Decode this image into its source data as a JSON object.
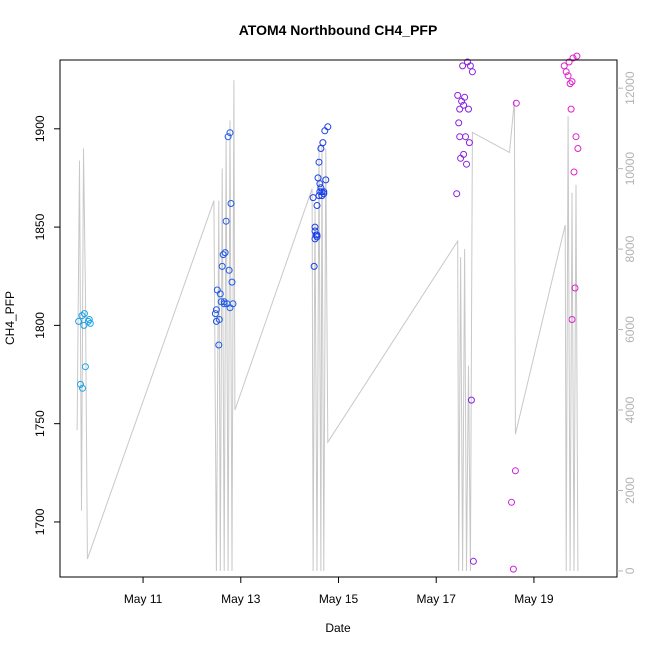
{
  "chart_data": {
    "type": "scatter",
    "title": "ATOM4 Northbound CH4_PFP",
    "xlabel": "Date",
    "ylabel": "CH4_PFP",
    "x_axis": {
      "unit": "day of May",
      "range": [
        9.3,
        20.7
      ],
      "ticks": [
        11,
        13,
        15,
        17,
        19
      ],
      "tick_labels": [
        "May 11",
        "May 13",
        "May 15",
        "May 17",
        "May 19"
      ]
    },
    "y_axis_left": {
      "range": [
        1672,
        1935
      ],
      "ticks": [
        1700,
        1750,
        1800,
        1850,
        1900
      ],
      "tick_labels": [
        "1700",
        "1750",
        "1800",
        "1850",
        "1900"
      ]
    },
    "y_axis_right": {
      "range": [
        -150,
        12700
      ],
      "ticks": [
        0,
        2000,
        4000,
        6000,
        8000,
        10000,
        12000
      ],
      "tick_labels": [
        "0",
        "2000",
        "4000",
        "6000",
        "8000",
        "10000",
        "12000"
      ],
      "color": "#b3b3b3"
    },
    "grid": false,
    "legend": "none",
    "colors": {
      "group_1": "#1ca3e6",
      "group_2": "#1f5ae6",
      "group_3": "#1a3fe6",
      "group_4": "#8a22e0",
      "group_5": "#cc22dd",
      "group_6": "#dd22cc",
      "altitude_line": "#c8c8c8"
    },
    "series": [
      {
        "color": "#1ca3e6",
        "points": [
          [
            9.68,
            1802
          ],
          [
            9.75,
            1805
          ],
          [
            9.8,
            1806
          ],
          [
            9.72,
            1770
          ],
          [
            9.76,
            1768
          ],
          [
            9.79,
            1800
          ],
          [
            9.82,
            1779
          ],
          [
            9.88,
            1802
          ],
          [
            9.9,
            1803
          ],
          [
            9.92,
            1801
          ]
        ]
      },
      {
        "color": "#1f5ae6",
        "points": [
          [
            12.48,
            1806
          ],
          [
            12.5,
            1802
          ],
          [
            12.52,
            1818
          ],
          [
            12.55,
            1790
          ],
          [
            12.58,
            1816
          ],
          [
            12.6,
            1812
          ],
          [
            12.62,
            1830
          ],
          [
            12.64,
            1836
          ],
          [
            12.66,
            1812
          ],
          [
            12.68,
            1837
          ],
          [
            12.7,
            1853
          ],
          [
            12.72,
            1811
          ],
          [
            12.74,
            1896
          ],
          [
            12.76,
            1828
          ],
          [
            12.78,
            1898
          ],
          [
            12.8,
            1862
          ],
          [
            12.82,
            1822
          ],
          [
            12.84,
            1811
          ],
          [
            12.5,
            1808
          ],
          [
            12.56,
            1803
          ],
          [
            12.66,
            1811
          ],
          [
            12.78,
            1809
          ]
        ]
      },
      {
        "color": "#1a3fe6",
        "points": [
          [
            14.48,
            1865
          ],
          [
            14.5,
            1830
          ],
          [
            14.52,
            1850
          ],
          [
            14.54,
            1846
          ],
          [
            14.56,
            1861
          ],
          [
            14.58,
            1875
          ],
          [
            14.6,
            1883
          ],
          [
            14.62,
            1872
          ],
          [
            14.64,
            1890
          ],
          [
            14.66,
            1868
          ],
          [
            14.68,
            1893
          ],
          [
            14.7,
            1867
          ],
          [
            14.72,
            1899
          ],
          [
            14.74,
            1874
          ],
          [
            14.78,
            1901
          ],
          [
            14.52,
            1844
          ],
          [
            14.56,
            1846
          ],
          [
            14.6,
            1866
          ],
          [
            14.64,
            1870
          ],
          [
            14.66,
            1866
          ],
          [
            14.7,
            1868
          ],
          [
            14.52,
            1848
          ],
          [
            14.56,
            1845
          ],
          [
            14.62,
            1868
          ]
        ]
      },
      {
        "color": "#8a22e0",
        "points": [
          [
            17.42,
            1867
          ],
          [
            17.44,
            1917
          ],
          [
            17.46,
            1903
          ],
          [
            17.48,
            1896
          ],
          [
            17.5,
            1885
          ],
          [
            17.52,
            1914
          ],
          [
            17.54,
            1932
          ],
          [
            17.56,
            1887
          ],
          [
            17.58,
            1916
          ],
          [
            17.6,
            1896
          ],
          [
            17.62,
            1882
          ],
          [
            17.64,
            1934
          ],
          [
            17.66,
            1910
          ],
          [
            17.68,
            1893
          ],
          [
            17.7,
            1932
          ],
          [
            17.72,
            1762
          ],
          [
            17.74,
            1929
          ],
          [
            17.76,
            1680
          ],
          [
            17.48,
            1910
          ],
          [
            17.56,
            1912
          ]
        ]
      },
      {
        "color": "#cc22dd",
        "points": [
          [
            18.54,
            1710
          ],
          [
            18.58,
            1676
          ],
          [
            18.62,
            1726
          ],
          [
            18.64,
            1913
          ]
        ]
      },
      {
        "color": "#dd22cc",
        "points": [
          [
            19.62,
            1932
          ],
          [
            19.66,
            1929
          ],
          [
            19.7,
            1927
          ],
          [
            19.72,
            1934
          ],
          [
            19.74,
            1923
          ],
          [
            19.76,
            1910
          ],
          [
            19.78,
            1924
          ],
          [
            19.8,
            1936
          ],
          [
            19.82,
            1878
          ],
          [
            19.84,
            1819
          ],
          [
            19.86,
            1896
          ],
          [
            19.88,
            1937
          ],
          [
            19.9,
            1890
          ],
          [
            19.78,
            1803
          ]
        ]
      }
    ],
    "altitude_line": {
      "color": "#c8c8c8",
      "axis": "right",
      "points": [
        [
          9.65,
          3500
        ],
        [
          9.7,
          10200
        ],
        [
          9.74,
          1500
        ],
        [
          9.78,
          10500
        ],
        [
          9.82,
          7000
        ],
        [
          9.86,
          300
        ],
        [
          12.45,
          9200
        ],
        [
          12.5,
          0
        ],
        [
          12.55,
          9200
        ],
        [
          12.58,
          0
        ],
        [
          12.62,
          10000
        ],
        [
          12.66,
          0
        ],
        [
          12.7,
          10800
        ],
        [
          12.74,
          0
        ],
        [
          12.78,
          11200
        ],
        [
          12.82,
          0
        ],
        [
          12.86,
          12200
        ],
        [
          12.88,
          4000
        ],
        [
          14.46,
          9500
        ],
        [
          14.48,
          0
        ],
        [
          14.52,
          9000
        ],
        [
          14.56,
          0
        ],
        [
          14.6,
          10600
        ],
        [
          14.64,
          0
        ],
        [
          14.66,
          10600
        ],
        [
          14.7,
          0
        ],
        [
          14.74,
          10500
        ],
        [
          14.78,
          3200
        ],
        [
          17.44,
          8200
        ],
        [
          17.46,
          0
        ],
        [
          17.5,
          7800
        ],
        [
          17.54,
          0
        ],
        [
          17.58,
          8000
        ],
        [
          17.62,
          0
        ],
        [
          17.66,
          5100
        ],
        [
          17.7,
          0
        ],
        [
          17.74,
          10900
        ],
        [
          18.5,
          10400
        ],
        [
          18.6,
          11700
        ],
        [
          18.62,
          3400
        ],
        [
          19.64,
          8600
        ],
        [
          19.66,
          0
        ],
        [
          19.7,
          11300
        ],
        [
          19.74,
          0
        ],
        [
          19.78,
          9400
        ],
        [
          19.82,
          0
        ],
        [
          19.86,
          9600
        ],
        [
          19.9,
          0
        ]
      ]
    }
  }
}
